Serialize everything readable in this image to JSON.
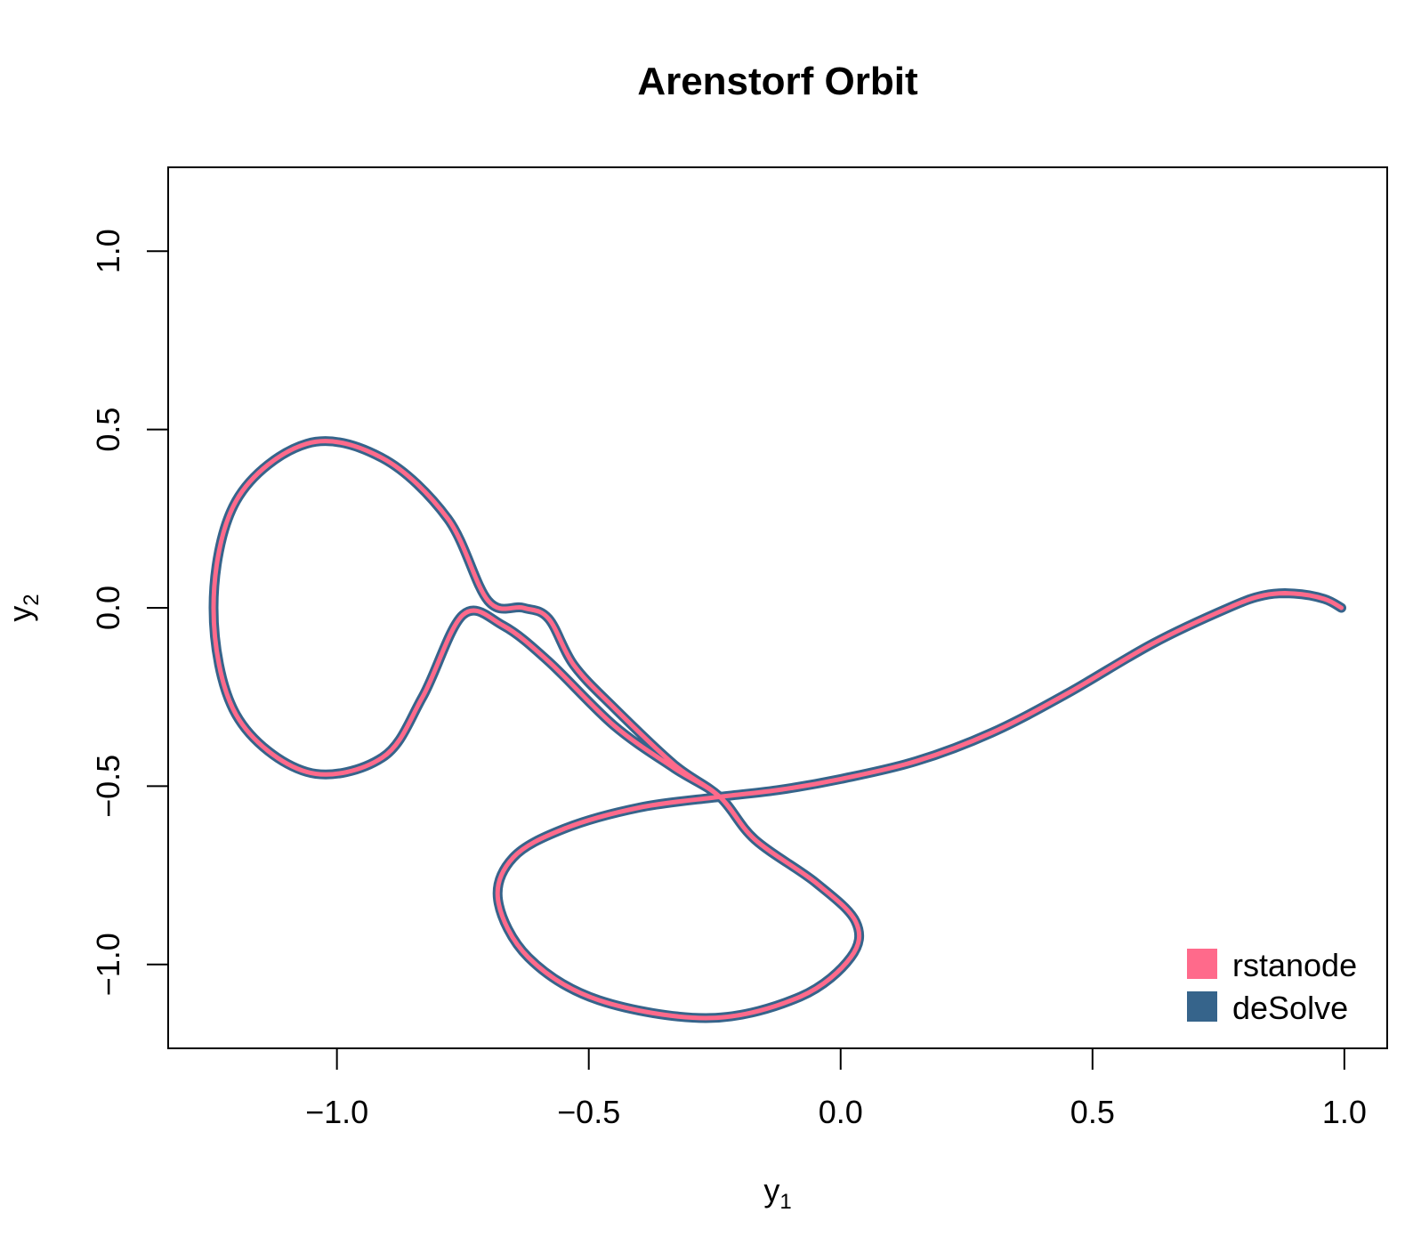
{
  "chart_data": {
    "type": "line",
    "title": "Arenstorf Orbit",
    "xlabel": {
      "base": "y",
      "sub": "1"
    },
    "ylabel": {
      "base": "y",
      "sub": "2"
    },
    "xlim": [
      -1.335,
      1.085
    ],
    "ylim": [
      -1.235,
      1.235
    ],
    "xticks": [
      -1.0,
      -0.5,
      0.0,
      0.5,
      1.0
    ],
    "xtick_labels": [
      "−1.0",
      "−0.5",
      "0.0",
      "0.5",
      "1.0"
    ],
    "yticks": [
      -1.0,
      -0.5,
      0.0,
      0.5,
      1.0
    ],
    "ytick_labels": [
      "−1.0",
      "−0.5",
      "0.0",
      "0.5",
      "1.0"
    ],
    "grid": false,
    "legend_position": "bottom-right",
    "series": [
      {
        "name": "deSolve",
        "color": "#36648B",
        "x": [
          0.994,
          0.96,
          0.9,
          0.84,
          0.77,
          0.62,
          0.45,
          0.3,
          0.15,
          0.0,
          -0.12,
          -0.24,
          -0.4,
          -0.55,
          -0.65,
          -0.68,
          -0.62,
          -0.48,
          -0.26,
          -0.08,
          0.02,
          0.03,
          -0.05,
          -0.17,
          -0.24,
          -0.33,
          -0.45,
          -0.58,
          -0.67,
          -0.75,
          -0.83,
          -0.91,
          -1.06,
          -1.2,
          -1.245,
          -1.2,
          -1.06,
          -0.91,
          -0.78,
          -0.7,
          -0.63,
          -0.58,
          -0.53,
          -0.45,
          -0.33,
          -0.24,
          -0.17,
          -0.05,
          0.03,
          0.02,
          -0.08,
          -0.26,
          -0.48,
          -0.62,
          -0.68,
          -0.65,
          -0.55,
          -0.4,
          -0.24,
          -0.12,
          0.0,
          0.15,
          0.3,
          0.45,
          0.62,
          0.77,
          0.84,
          0.9,
          0.96,
          0.994
        ],
        "y": [
          0.0,
          0.025,
          0.04,
          0.035,
          0.0,
          -0.1,
          -0.24,
          -0.35,
          -0.43,
          -0.48,
          -0.51,
          -0.53,
          -0.56,
          -0.62,
          -0.7,
          -0.82,
          -0.98,
          -1.1,
          -1.15,
          -1.09,
          -0.98,
          -0.88,
          -0.77,
          -0.65,
          -0.53,
          -0.45,
          -0.33,
          -0.15,
          -0.05,
          -0.02,
          -0.25,
          -0.42,
          -0.46,
          -0.3,
          0.0,
          0.3,
          0.46,
          0.42,
          0.25,
          0.02,
          0.0,
          -0.03,
          -0.16,
          -0.28,
          -0.44,
          -0.53,
          -0.65,
          -0.77,
          -0.88,
          -0.98,
          -1.09,
          -1.15,
          -1.1,
          -0.98,
          -0.82,
          -0.7,
          -0.62,
          -0.56,
          -0.53,
          -0.51,
          -0.48,
          -0.43,
          -0.35,
          -0.24,
          -0.1,
          0.0,
          0.035,
          0.04,
          0.025,
          0.0
        ],
        "line_width": "wide"
      },
      {
        "name": "rstanode",
        "color": "#FF6A8B",
        "x": [
          0.994,
          0.96,
          0.9,
          0.84,
          0.77,
          0.62,
          0.45,
          0.3,
          0.15,
          0.0,
          -0.12,
          -0.24,
          -0.4,
          -0.55,
          -0.65,
          -0.68,
          -0.62,
          -0.48,
          -0.26,
          -0.08,
          0.02,
          0.03,
          -0.05,
          -0.17,
          -0.24,
          -0.33,
          -0.45,
          -0.58,
          -0.67,
          -0.75,
          -0.83,
          -0.91,
          -1.06,
          -1.2,
          -1.245,
          -1.2,
          -1.06,
          -0.91,
          -0.78,
          -0.7,
          -0.63,
          -0.58,
          -0.53,
          -0.45,
          -0.33,
          -0.24,
          -0.17,
          -0.05,
          0.03,
          0.02,
          -0.08,
          -0.26,
          -0.48,
          -0.62,
          -0.68,
          -0.65,
          -0.55,
          -0.4,
          -0.24,
          -0.12,
          0.0,
          0.15,
          0.3,
          0.45,
          0.62,
          0.77,
          0.84,
          0.9,
          0.96,
          0.994
        ],
        "y": [
          0.0,
          0.025,
          0.04,
          0.035,
          0.0,
          -0.1,
          -0.24,
          -0.35,
          -0.43,
          -0.48,
          -0.51,
          -0.53,
          -0.56,
          -0.62,
          -0.7,
          -0.82,
          -0.98,
          -1.1,
          -1.15,
          -1.09,
          -0.98,
          -0.88,
          -0.77,
          -0.65,
          -0.53,
          -0.45,
          -0.33,
          -0.15,
          -0.05,
          -0.02,
          -0.25,
          -0.42,
          -0.46,
          -0.3,
          0.0,
          0.3,
          0.46,
          0.42,
          0.25,
          0.02,
          0.0,
          -0.03,
          -0.16,
          -0.28,
          -0.44,
          -0.53,
          -0.65,
          -0.77,
          -0.88,
          -0.98,
          -1.09,
          -1.15,
          -1.1,
          -0.98,
          -0.82,
          -0.7,
          -0.62,
          -0.56,
          -0.53,
          -0.51,
          -0.48,
          -0.43,
          -0.35,
          -0.24,
          -0.1,
          0.0,
          0.035,
          0.04,
          0.025,
          0.0
        ],
        "line_width": "thin"
      }
    ],
    "legend": [
      {
        "label": "rstanode",
        "color": "#FF6A8B"
      },
      {
        "label": "deSolve",
        "color": "#36648B"
      }
    ]
  }
}
